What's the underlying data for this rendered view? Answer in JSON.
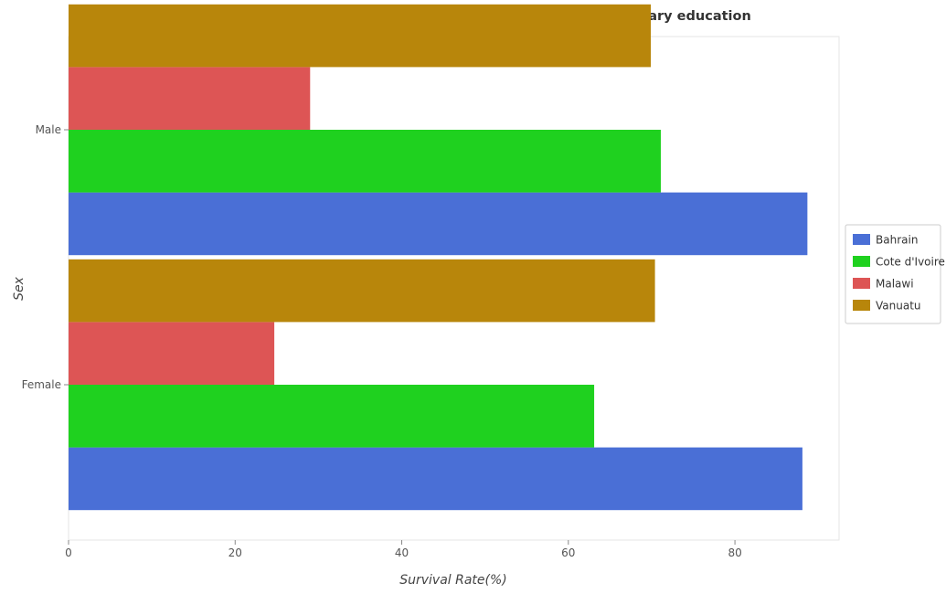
{
  "chart_data": {
    "type": "bar",
    "orientation": "horizontal",
    "title": "Survival rate of children of different countries in Grade 5 of primary education",
    "xlabel": "Survival Rate(%)",
    "ylabel": "Sex",
    "categories": [
      "Female",
      "Male"
    ],
    "series": [
      {
        "name": "Bahrain",
        "color": "#4a6fd6",
        "values": [
          88.1,
          88.7
        ]
      },
      {
        "name": "Cote d'Ivoire",
        "color": "#1fd11f",
        "values": [
          63.1,
          71.1
        ]
      },
      {
        "name": "Malawi",
        "color": "#dd5555",
        "values": [
          24.7,
          29.0
        ]
      },
      {
        "name": "Vanuatu",
        "color": "#b8860b",
        "values": [
          70.4,
          69.9
        ]
      }
    ],
    "xlim": [
      0,
      92.5
    ],
    "xticks": [
      0,
      20,
      40,
      60,
      80
    ],
    "grid": false,
    "legend_position": "right"
  }
}
